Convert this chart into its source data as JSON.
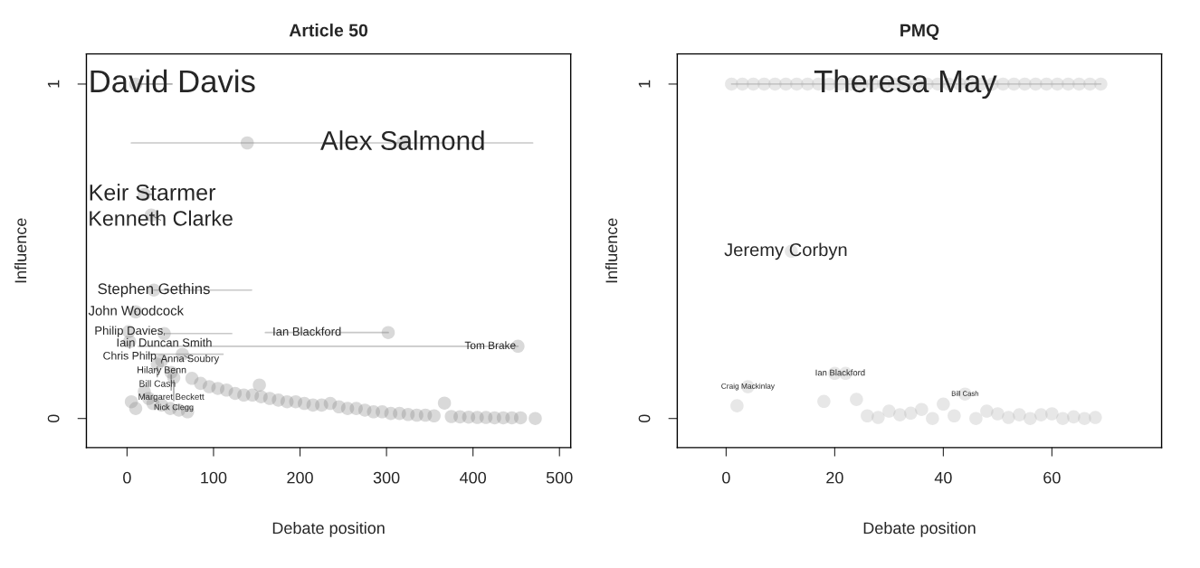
{
  "chart_data": [
    {
      "type": "scatter",
      "title": "Article 50",
      "xlabel": "Debate position",
      "ylabel": "Influence",
      "xlim": [
        -47,
        513
      ],
      "ylim": [
        -0.087,
        1.09
      ],
      "xticks": [
        0,
        100,
        200,
        300,
        400,
        500
      ],
      "yticks": [
        0,
        1
      ],
      "grid": false,
      "legend": false,
      "series": [
        {
          "color": "#808080",
          "x": [
            10,
            10,
            2,
            3,
            139,
            319,
            20,
            28,
            31,
            43,
            302,
            452,
            64,
            40,
            35,
            51,
            54,
            153,
            5,
            10,
            20,
            25,
            30,
            40,
            50,
            60,
            70,
            75,
            85,
            95,
            105,
            115,
            125,
            135,
            145,
            155,
            165,
            175,
            185,
            195,
            205,
            215,
            225,
            235,
            245,
            255,
            265,
            275,
            285,
            295,
            305,
            315,
            325,
            335,
            345,
            355,
            367,
            375,
            385,
            395,
            405,
            415,
            425,
            435,
            445,
            455,
            472
          ],
          "values": [
            1.0,
            0.319,
            0.26,
            0.23,
            0.824,
            0.824,
            0.67,
            0.608,
            0.384,
            0.254,
            0.257,
            0.216,
            0.192,
            0.173,
            0.162,
            0.138,
            0.122,
            0.1,
            0.05,
            0.03,
            0.08,
            0.06,
            0.045,
            0.04,
            0.03,
            0.025,
            0.02,
            0.12,
            0.105,
            0.095,
            0.09,
            0.085,
            0.075,
            0.07,
            0.07,
            0.065,
            0.06,
            0.055,
            0.05,
            0.05,
            0.045,
            0.04,
            0.04,
            0.045,
            0.035,
            0.03,
            0.03,
            0.025,
            0.02,
            0.02,
            0.015,
            0.015,
            0.012,
            0.01,
            0.01,
            0.008,
            0.046,
            0.006,
            0.005,
            0.004,
            0.003,
            0.003,
            0.002,
            0.002,
            0.002,
            0.002,
            0.0
          ]
        },
        {
          "type": "line",
          "color": "#c8c8c8",
          "x": [
            5,
            139,
            319,
            469
          ],
          "values": [
            0.824,
            0.824,
            0.824,
            0.824
          ]
        },
        {
          "type": "line",
          "color": "#c8c8c8",
          "x": [
            31,
            144
          ],
          "values": [
            0.384,
            0.384
          ]
        },
        {
          "type": "line",
          "color": "#c8c8c8",
          "x": [
            43,
            121
          ],
          "values": [
            0.254,
            0.254
          ]
        },
        {
          "type": "line",
          "color": "#c8c8c8",
          "x": [
            160,
            170,
            302
          ],
          "values": [
            0.257,
            0.257,
            0.257
          ]
        },
        {
          "type": "line",
          "color": "#c8c8c8",
          "x": [
            13,
            452
          ],
          "values": [
            0.216,
            0.216
          ]
        },
        {
          "type": "line",
          "color": "#c8c8c8",
          "x": [
            24,
            64,
            101,
            111
          ],
          "values": [
            0.192,
            0.192,
            0.192,
            0.192
          ]
        }
      ],
      "annotations": [
        {
          "text": "David Davis",
          "x": 10,
          "y": 1.0
        },
        {
          "text": "Alex Salmond",
          "x": 319,
          "y": 0.824
        },
        {
          "text": "Keir Starmer",
          "x": 20,
          "y": 0.67
        },
        {
          "text": "Kenneth Clarke",
          "x": 28,
          "y": 0.608
        },
        {
          "text": "Stephen Gethins",
          "x": 31,
          "y": 0.384
        },
        {
          "text": "John Woodcock",
          "x": 10,
          "y": 0.319
        },
        {
          "text": "Philip Davies",
          "x": 2,
          "y": 0.26
        },
        {
          "text": "Iain Duncan Smith",
          "x": 43,
          "y": 0.254
        },
        {
          "text": "Ian Blackford",
          "x": 208,
          "y": 0.257
        },
        {
          "text": "Chris Philp",
          "x": 3,
          "y": 0.23
        },
        {
          "text": "Tom Brake",
          "x": 420,
          "y": 0.216
        },
        {
          "text": "Anna Soubry",
          "x": 64,
          "y": 0.192
        },
        {
          "text": "Hilary Benn",
          "x": 40,
          "y": 0.173
        },
        {
          "text": "Bill Cash",
          "x": 35,
          "y": 0.162
        },
        {
          "text": "Margaret Beckett",
          "x": 51,
          "y": 0.138
        },
        {
          "text": "Nick Clegg",
          "x": 54,
          "y": 0.122
        }
      ]
    },
    {
      "type": "scatter",
      "title": "PMQ",
      "xlabel": "Debate position",
      "ylabel": "Influence",
      "xlim": [
        -9,
        80.2
      ],
      "ylim": [
        -0.087,
        1.09
      ],
      "xticks": [
        0,
        20,
        40,
        60
      ],
      "yticks": [
        0,
        1
      ],
      "grid": false,
      "legend": false,
      "series": [
        {
          "type": "line",
          "color": "#d0d0d0",
          "x": [
            1,
            69
          ],
          "values": [
            1.0,
            1.0
          ]
        },
        {
          "color": "#b0b0b0",
          "x": [
            1,
            3,
            5,
            7,
            9,
            11,
            13,
            15,
            17,
            19,
            21,
            23,
            25,
            27,
            29,
            31,
            33,
            35,
            37,
            39,
            41,
            43,
            45,
            47,
            49,
            51,
            53,
            55,
            57,
            59,
            61,
            63,
            65,
            67,
            69,
            12,
            20,
            22,
            4,
            2,
            18,
            24,
            26,
            28,
            30,
            32,
            34,
            36,
            38,
            40,
            42,
            44,
            46,
            48,
            50,
            52,
            54,
            56,
            58,
            60,
            62,
            64,
            66,
            68
          ],
          "values": [
            1,
            1,
            1,
            1,
            1,
            1,
            1,
            1,
            1,
            1,
            1,
            1,
            1,
            1,
            1,
            1,
            1,
            1,
            1,
            1,
            1,
            1,
            1,
            1,
            1,
            1,
            1,
            1,
            1,
            1,
            1,
            1,
            1,
            1,
            1,
            0.5,
            0.135,
            0.135,
            0.095,
            0.038,
            0.051,
            0.057,
            0.008,
            0.003,
            0.022,
            0.011,
            0.016,
            0.027,
            0.0,
            0.043,
            0.008,
            0.073,
            0.0,
            0.022,
            0.014,
            0.003,
            0.011,
            0.0,
            0.011,
            0.014,
            0.0,
            0.005,
            0.0,
            0.003
          ]
        }
      ],
      "annotations": [
        {
          "text": "Theresa May",
          "x": 33,
          "y": 1.0
        },
        {
          "text": "Jeremy Corbyn",
          "x": 11,
          "y": 0.5
        },
        {
          "text": "Ian Blackford",
          "x": 21,
          "y": 0.135
        },
        {
          "text": "Craig Mackinlay",
          "x": 4,
          "y": 0.095
        },
        {
          "text": "Bill Cash",
          "x": 44,
          "y": 0.073
        }
      ]
    }
  ]
}
